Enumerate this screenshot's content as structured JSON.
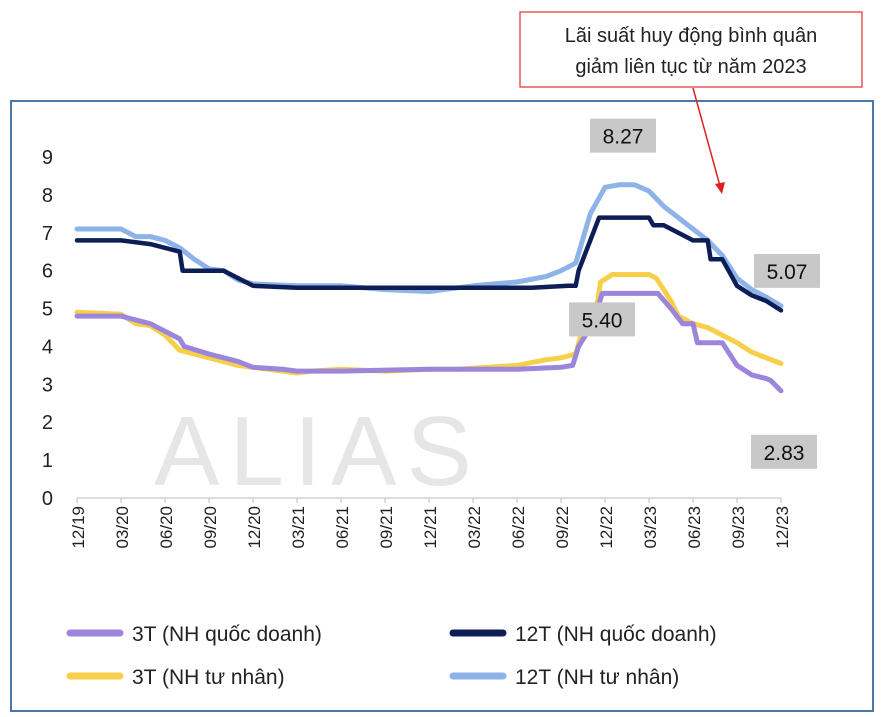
{
  "callout": {
    "line1": "Lãi suất huy động bình quân",
    "line2": "giảm liên tục từ năm 2023"
  },
  "watermark": "ALIAS",
  "colors": {
    "frame": "#4a79a8",
    "callout_border": "#e03030",
    "arrow": "#e02020",
    "label_box": "#c8c8c8",
    "watermark": "#e6e6e6"
  },
  "chart_data": {
    "type": "line",
    "title": "",
    "xlabel": "",
    "ylabel": "",
    "ylim": [
      0,
      9
    ],
    "yticks": [
      "0",
      "1",
      "2",
      "3",
      "4",
      "5",
      "6",
      "7",
      "8",
      "9"
    ],
    "xlim": [
      0,
      48
    ],
    "x_tick_labels": [
      "12/19",
      "03/20",
      "06/20",
      "09/20",
      "12/20",
      "03/21",
      "06/21",
      "09/21",
      "12/21",
      "03/22",
      "06/22",
      "09/22",
      "12/22",
      "03/23",
      "06/23",
      "09/23",
      "12/23"
    ],
    "grid": false,
    "legend_position": "bottom",
    "series": [
      {
        "name": "3T (NH quốc doanh)",
        "color": "#9b86db",
        "points": [
          [
            0,
            4.8
          ],
          [
            3,
            4.8
          ],
          [
            5,
            4.6
          ],
          [
            7,
            4.2
          ],
          [
            7.3,
            4.0
          ],
          [
            9,
            3.8
          ],
          [
            11,
            3.6
          ],
          [
            12,
            3.45
          ],
          [
            14,
            3.4
          ],
          [
            15,
            3.35
          ],
          [
            18,
            3.35
          ],
          [
            24,
            3.4
          ],
          [
            30,
            3.4
          ],
          [
            33,
            3.45
          ],
          [
            33.8,
            3.5
          ],
          [
            34.2,
            4.0
          ],
          [
            35,
            4.5
          ],
          [
            35.5,
            5.0
          ],
          [
            35.8,
            5.4
          ],
          [
            39,
            5.4
          ],
          [
            39.6,
            5.4
          ],
          [
            40.5,
            5.0
          ],
          [
            41.3,
            4.6
          ],
          [
            42,
            4.6
          ],
          [
            42.3,
            4.1
          ],
          [
            44,
            4.1
          ],
          [
            45,
            3.5
          ],
          [
            46,
            3.25
          ],
          [
            47,
            3.15
          ],
          [
            47.3,
            3.1
          ],
          [
            48,
            2.83
          ]
        ]
      },
      {
        "name": "12T (NH quốc doanh)",
        "color": "#0c1e55",
        "points": [
          [
            0,
            6.8
          ],
          [
            3,
            6.8
          ],
          [
            5,
            6.7
          ],
          [
            7,
            6.5
          ],
          [
            7.2,
            6.0
          ],
          [
            10,
            6.0
          ],
          [
            11,
            5.8
          ],
          [
            12,
            5.6
          ],
          [
            15,
            5.55
          ],
          [
            21,
            5.55
          ],
          [
            27,
            5.55
          ],
          [
            31,
            5.55
          ],
          [
            33.5,
            5.6
          ],
          [
            34,
            5.6
          ],
          [
            34.2,
            6.0
          ],
          [
            35,
            6.8
          ],
          [
            35.6,
            7.4
          ],
          [
            39,
            7.4
          ],
          [
            39.3,
            7.2
          ],
          [
            40,
            7.2
          ],
          [
            41,
            7.0
          ],
          [
            42,
            6.8
          ],
          [
            43,
            6.8
          ],
          [
            43.2,
            6.3
          ],
          [
            44,
            6.3
          ],
          [
            45,
            5.6
          ],
          [
            46,
            5.35
          ],
          [
            47,
            5.2
          ],
          [
            48,
            4.95
          ]
        ]
      },
      {
        "name": "3T (NH tư nhân)",
        "color": "#f7cf4a",
        "points": [
          [
            0,
            4.9
          ],
          [
            3,
            4.85
          ],
          [
            4,
            4.6
          ],
          [
            5,
            4.55
          ],
          [
            6,
            4.3
          ],
          [
            7,
            3.9
          ],
          [
            9,
            3.7
          ],
          [
            11,
            3.5
          ],
          [
            13,
            3.4
          ],
          [
            15,
            3.3
          ],
          [
            16,
            3.35
          ],
          [
            18,
            3.4
          ],
          [
            21,
            3.35
          ],
          [
            24,
            3.4
          ],
          [
            26,
            3.4
          ],
          [
            28,
            3.45
          ],
          [
            30,
            3.5
          ],
          [
            32,
            3.65
          ],
          [
            33,
            3.7
          ],
          [
            34,
            3.8
          ],
          [
            34.5,
            4.5
          ],
          [
            35,
            4.8
          ],
          [
            35.5,
            5.2
          ],
          [
            35.7,
            5.7
          ],
          [
            36.5,
            5.9
          ],
          [
            39,
            5.9
          ],
          [
            39.5,
            5.8
          ],
          [
            40.5,
            5.2
          ],
          [
            41,
            4.8
          ],
          [
            42,
            4.6
          ],
          [
            43,
            4.5
          ],
          [
            44,
            4.3
          ],
          [
            45,
            4.1
          ],
          [
            46,
            3.85
          ],
          [
            47,
            3.7
          ],
          [
            48,
            3.55
          ]
        ]
      },
      {
        "name": "12T (NH tư nhân)",
        "color": "#8eb3e8",
        "points": [
          [
            0,
            7.1
          ],
          [
            3,
            7.1
          ],
          [
            4,
            6.9
          ],
          [
            5,
            6.9
          ],
          [
            6,
            6.8
          ],
          [
            7,
            6.6
          ],
          [
            8,
            6.3
          ],
          [
            9,
            6.05
          ],
          [
            10,
            6.0
          ],
          [
            11,
            5.75
          ],
          [
            12,
            5.65
          ],
          [
            15,
            5.6
          ],
          [
            18,
            5.6
          ],
          [
            21,
            5.5
          ],
          [
            24,
            5.45
          ],
          [
            27,
            5.6
          ],
          [
            30,
            5.7
          ],
          [
            32,
            5.85
          ],
          [
            33,
            6.0
          ],
          [
            34,
            6.2
          ],
          [
            35,
            7.5
          ],
          [
            36,
            8.2
          ],
          [
            37,
            8.27
          ],
          [
            38,
            8.27
          ],
          [
            39,
            8.1
          ],
          [
            40,
            7.7
          ],
          [
            41,
            7.4
          ],
          [
            42,
            7.1
          ],
          [
            43,
            6.8
          ],
          [
            44,
            6.4
          ],
          [
            45,
            5.8
          ],
          [
            46,
            5.5
          ],
          [
            47,
            5.3
          ],
          [
            48,
            5.07
          ]
        ]
      }
    ],
    "annotations": [
      {
        "text": "8.27",
        "series": "12T (NH tư nhân)",
        "x": 37.5,
        "y": 8.27
      },
      {
        "text": "5.07",
        "series": "12T (NH tư nhân)",
        "x": 48,
        "y": 5.07
      },
      {
        "text": "5.40",
        "series": "3T (NH quốc doanh)",
        "x": 37.5,
        "y": 5.4
      },
      {
        "text": "2.83",
        "series": "3T (NH quốc doanh)",
        "x": 48,
        "y": 2.83
      }
    ]
  }
}
